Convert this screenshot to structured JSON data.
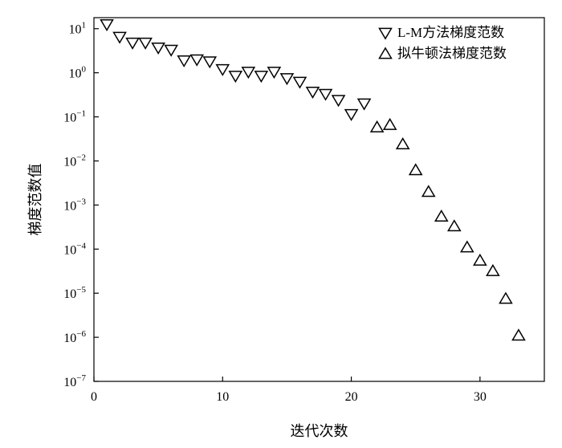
{
  "chart_data": {
    "type": "scatter",
    "xlabel": "迭代次数",
    "ylabel": "梯度范数值",
    "xlim": [
      0,
      35
    ],
    "ylim_log10": [
      -7,
      1.25
    ],
    "yscale": "log",
    "x_ticks": [
      0,
      10,
      20,
      30
    ],
    "y_tick_exponents": [
      -7,
      -6,
      -5,
      -4,
      -3,
      -2,
      -1,
      0,
      1
    ],
    "legend_position": "top-right",
    "series": [
      {
        "name": "L-M方法梯度范数",
        "marker": "triangle-down",
        "points": [
          {
            "x": 1,
            "y": 12.5
          },
          {
            "x": 2,
            "y": 6.5
          },
          {
            "x": 3,
            "y": 4.8
          },
          {
            "x": 4,
            "y": 4.8
          },
          {
            "x": 5,
            "y": 3.7
          },
          {
            "x": 6,
            "y": 3.3
          },
          {
            "x": 7,
            "y": 1.9
          },
          {
            "x": 8,
            "y": 2.0
          },
          {
            "x": 9,
            "y": 1.8
          },
          {
            "x": 10,
            "y": 1.2
          },
          {
            "x": 11,
            "y": 0.85
          },
          {
            "x": 12,
            "y": 1.05
          },
          {
            "x": 13,
            "y": 0.85
          },
          {
            "x": 14,
            "y": 1.05
          },
          {
            "x": 15,
            "y": 0.75
          },
          {
            "x": 16,
            "y": 0.62
          },
          {
            "x": 17,
            "y": 0.37
          },
          {
            "x": 18,
            "y": 0.33
          },
          {
            "x": 19,
            "y": 0.24
          },
          {
            "x": 20,
            "y": 0.115
          },
          {
            "x": 21,
            "y": 0.2
          }
        ]
      },
      {
        "name": "拟牛顿法梯度范数",
        "marker": "triangle-up",
        "points": [
          {
            "x": 22,
            "y": 0.058
          },
          {
            "x": 23,
            "y": 0.066
          },
          {
            "x": 24,
            "y": 0.024
          },
          {
            "x": 25,
            "y": 0.0062
          },
          {
            "x": 26,
            "y": 0.002
          },
          {
            "x": 27,
            "y": 0.00055
          },
          {
            "x": 28,
            "y": 0.00033
          },
          {
            "x": 29,
            "y": 0.00011
          },
          {
            "x": 30,
            "y": 5.5e-05
          },
          {
            "x": 31,
            "y": 3.2e-05
          },
          {
            "x": 32,
            "y": 7.5e-06
          },
          {
            "x": 33,
            "y": 1.1e-06
          }
        ]
      }
    ]
  }
}
